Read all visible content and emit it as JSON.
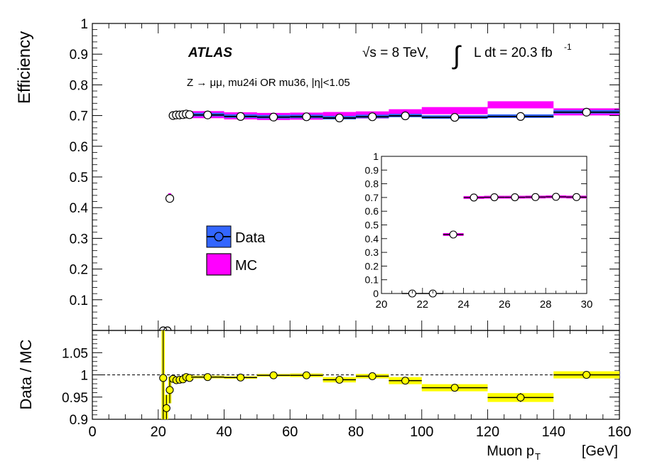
{
  "labels": {
    "experiment": "ATLAS",
    "energy": "√s = 8 TeV,",
    "lumi_lhs": "L dt = 20.3 fb",
    "lumi_sup": "-1",
    "process": "Z → μμ,  mu24i OR mu36,  |η|<1.05"
  },
  "colors": {
    "data_band": "#3366ff",
    "mc_band": "#ff00ff",
    "ratio_band": "#ffff00",
    "marker_face": "#ffffff",
    "ratio_marker_face": "#ffff00"
  },
  "chart_data": [
    {
      "name": "main",
      "type": "scatter",
      "ylabel": "Efficiency",
      "xlim": [
        0,
        160
      ],
      "ylim": [
        0,
        1
      ],
      "yticks": [
        "0.1",
        "0.2",
        "0.3",
        "0.4",
        "0.5",
        "0.6",
        "0.7",
        "0.8",
        "0.9",
        "1"
      ],
      "legend": {
        "position": "middle-left",
        "entries": [
          "Data",
          "MC"
        ]
      },
      "series": [
        {
          "name": "Data",
          "points": [
            {
              "x": 21.5,
              "y": 0.0
            },
            {
              "x": 22.5,
              "y": 0.0
            },
            {
              "x": 23.5,
              "y": 0.43
            },
            {
              "x": 24.5,
              "y": 0.7
            },
            {
              "x": 25.5,
              "y": 0.702
            },
            {
              "x": 26.5,
              "y": 0.702
            },
            {
              "x": 27.5,
              "y": 0.703
            },
            {
              "x": 28.5,
              "y": 0.705
            },
            {
              "x": 29.5,
              "y": 0.703
            },
            {
              "x": 35,
              "y": 0.702
            },
            {
              "x": 45,
              "y": 0.697
            },
            {
              "x": 55,
              "y": 0.695
            },
            {
              "x": 65,
              "y": 0.696
            },
            {
              "x": 75,
              "y": 0.692
            },
            {
              "x": 85,
              "y": 0.696
            },
            {
              "x": 95,
              "y": 0.699
            },
            {
              "x": 110,
              "y": 0.694
            },
            {
              "x": 130,
              "y": 0.697
            },
            {
              "x": 150,
              "y": 0.711
            }
          ]
        },
        {
          "name": "MC",
          "bins": [
            {
              "x0": 30,
              "x1": 40,
              "y": 0.703
            },
            {
              "x0": 40,
              "x1": 50,
              "y": 0.699
            },
            {
              "x0": 50,
              "x1": 60,
              "y": 0.697
            },
            {
              "x0": 60,
              "x1": 70,
              "y": 0.698
            },
            {
              "x0": 70,
              "x1": 80,
              "y": 0.7
            },
            {
              "x0": 80,
              "x1": 90,
              "y": 0.702
            },
            {
              "x0": 90,
              "x1": 100,
              "y": 0.709
            },
            {
              "x0": 100,
              "x1": 120,
              "y": 0.716
            },
            {
              "x0": 120,
              "x1": 140,
              "y": 0.735
            },
            {
              "x0": 140,
              "x1": 160,
              "y": 0.712
            }
          ]
        }
      ]
    },
    {
      "name": "inset",
      "type": "scatter",
      "xlim": [
        20,
        30
      ],
      "ylim": [
        0,
        1
      ],
      "xticks": [
        "20",
        "22",
        "24",
        "26",
        "28",
        "30"
      ],
      "yticks": [
        "0",
        "0.1",
        "0.2",
        "0.3",
        "0.4",
        "0.5",
        "0.6",
        "0.7",
        "0.8",
        "0.9",
        "1"
      ],
      "points": [
        {
          "x": 21.5,
          "y": 0.0
        },
        {
          "x": 22.5,
          "y": 0.0
        },
        {
          "x": 23.5,
          "y": 0.43
        },
        {
          "x": 24.5,
          "y": 0.7
        },
        {
          "x": 25.5,
          "y": 0.702
        },
        {
          "x": 26.5,
          "y": 0.702
        },
        {
          "x": 27.5,
          "y": 0.703
        },
        {
          "x": 28.5,
          "y": 0.705
        },
        {
          "x": 29.5,
          "y": 0.703
        }
      ]
    },
    {
      "name": "ratio",
      "type": "scatter",
      "xlabel": "Muon p",
      "xlabel_sub": "T",
      "xlabel_unit": "[GeV]",
      "ylabel": "Data / MC",
      "xlim": [
        0,
        160
      ],
      "ylim": [
        0.9,
        1.1
      ],
      "xticks": [
        "0",
        "20",
        "40",
        "60",
        "80",
        "100",
        "120",
        "140",
        "160"
      ],
      "yticks": [
        "0.9",
        "0.95",
        "1",
        "1.05"
      ],
      "points": [
        {
          "x": 21.5,
          "y": 0.993,
          "err": 0.2
        },
        {
          "x": 22.5,
          "y": 0.925,
          "err": 0.03
        },
        {
          "x": 23.5,
          "y": 0.966,
          "err": 0.03
        },
        {
          "x": 24.5,
          "y": 0.991,
          "err": 0.008
        },
        {
          "x": 25.5,
          "y": 0.988,
          "err": 0.006
        },
        {
          "x": 26.5,
          "y": 0.989,
          "err": 0.006
        },
        {
          "x": 27.5,
          "y": 0.99,
          "err": 0.006
        },
        {
          "x": 28.5,
          "y": 0.995,
          "err": 0.006
        },
        {
          "x": 29.5,
          "y": 0.993,
          "err": 0.006
        },
        {
          "x": 35,
          "y": 0.995,
          "x0": 30,
          "x1": 40,
          "err": 0.003
        },
        {
          "x": 45,
          "y": 0.994,
          "x0": 40,
          "x1": 50,
          "err": 0.003
        },
        {
          "x": 55,
          "y": 0.999,
          "x0": 50,
          "x1": 60,
          "err": 0.003
        },
        {
          "x": 65,
          "y": 0.999,
          "x0": 60,
          "x1": 70,
          "err": 0.004
        },
        {
          "x": 75,
          "y": 0.989,
          "x0": 70,
          "x1": 80,
          "err": 0.006
        },
        {
          "x": 85,
          "y": 0.997,
          "x0": 80,
          "x1": 90,
          "err": 0.005
        },
        {
          "x": 95,
          "y": 0.987,
          "x0": 90,
          "x1": 100,
          "err": 0.008
        },
        {
          "x": 110,
          "y": 0.971,
          "x0": 100,
          "x1": 120,
          "err": 0.008
        },
        {
          "x": 130,
          "y": 0.949,
          "x0": 120,
          "x1": 140,
          "err": 0.01
        },
        {
          "x": 150,
          "y": 1.0,
          "x0": 140,
          "x1": 160,
          "err": 0.008
        }
      ]
    }
  ]
}
